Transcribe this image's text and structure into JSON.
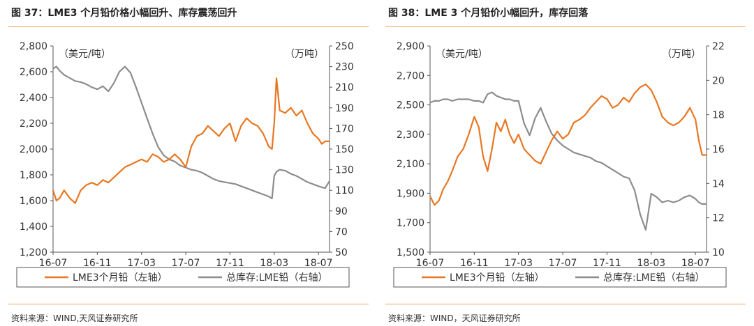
{
  "colors": {
    "lead": "#e87722",
    "inventory": "#8c8c8c",
    "rule": "#e6a15a",
    "axis": "#555555",
    "text": "#333333"
  },
  "chart_data": [
    {
      "type": "line",
      "title": "图 37：LME3 个月铅价格小幅回升、库存震荡回升",
      "source": "资料来源：WIND,天风证券研究所",
      "left_unit": "（美元/吨）",
      "right_unit": "（万吨）",
      "ylim_left": [
        1200,
        2800
      ],
      "yticks_left": [
        1200,
        1400,
        1600,
        1800,
        2000,
        2200,
        2400,
        2600,
        2800
      ],
      "ytick_labels_left": [
        "1,200",
        "1,400",
        "1,600",
        "1,800",
        "2,000",
        "2,200",
        "2,400",
        "2,600",
        "2,800"
      ],
      "ylim_right": [
        50,
        250
      ],
      "yticks_right": [
        50,
        70,
        90,
        110,
        130,
        150,
        170,
        190,
        210,
        230,
        250
      ],
      "ytick_labels_right": [
        "50",
        "70",
        "90",
        "110",
        "130",
        "150",
        "170",
        "190",
        "210",
        "230",
        "250"
      ],
      "xlim": [
        0,
        25
      ],
      "x_ticks": [
        0,
        4,
        8,
        12,
        16,
        20,
        24
      ],
      "x_tick_labels": [
        "16-07",
        "16-11",
        "17-03",
        "17-07",
        "17-11",
        "18-03",
        "18-07"
      ],
      "legend": [
        "LME3个月铅（左轴）",
        "总库存:LME铅（右轴）"
      ],
      "series": [
        {
          "name": "LME3个月铅（左轴）",
          "axis": "left",
          "color": "#e87722",
          "x": [
            0,
            0.3,
            0.6,
            1,
            1.5,
            2,
            2.5,
            3,
            3.5,
            4,
            4.5,
            5,
            5.5,
            6,
            6.5,
            7,
            7.5,
            8,
            8.5,
            9,
            9.5,
            10,
            10.5,
            11,
            11.5,
            12,
            12.5,
            13,
            13.5,
            14,
            14.5,
            15,
            15.5,
            16,
            16.5,
            17,
            17.5,
            18,
            18.5,
            19,
            19.5,
            19.8,
            20,
            20.2,
            20.5,
            21,
            21.5,
            22,
            22.5,
            23,
            23.5,
            24,
            24.3,
            24.6,
            25
          ],
          "values": [
            1680,
            1600,
            1620,
            1680,
            1620,
            1580,
            1680,
            1720,
            1740,
            1720,
            1760,
            1740,
            1780,
            1820,
            1860,
            1880,
            1900,
            1920,
            1900,
            1960,
            1940,
            1900,
            1920,
            1960,
            1920,
            1860,
            2020,
            2100,
            2120,
            2180,
            2140,
            2100,
            2160,
            2200,
            2060,
            2180,
            2240,
            2200,
            2180,
            2120,
            2020,
            2000,
            2200,
            2550,
            2300,
            2280,
            2320,
            2260,
            2300,
            2200,
            2120,
            2080,
            2040,
            2060,
            2060
          ]
        },
        {
          "name": "总库存:LME铅（右轴）",
          "axis": "right",
          "color": "#8c8c8c",
          "x": [
            0,
            0.3,
            0.6,
            1,
            1.5,
            2,
            2.5,
            3,
            3.5,
            4,
            4.5,
            5,
            5.5,
            6,
            6.5,
            7,
            7.5,
            8,
            8.5,
            9,
            9.5,
            10,
            10.5,
            11,
            11.5,
            12,
            12.5,
            13,
            13.5,
            14,
            14.5,
            15,
            15.5,
            16,
            16.5,
            17,
            17.5,
            18,
            18.5,
            19,
            19.5,
            19.8,
            20,
            20.2,
            20.5,
            21,
            21.5,
            22,
            22.5,
            23,
            23.5,
            24,
            24.3,
            24.6,
            25
          ],
          "values": [
            228,
            230,
            226,
            222,
            219,
            216,
            215,
            213,
            210,
            208,
            211,
            206,
            214,
            225,
            230,
            224,
            210,
            195,
            180,
            165,
            152,
            144,
            140,
            138,
            134,
            132,
            130,
            129,
            127,
            124,
            121,
            119,
            118,
            117,
            116,
            114,
            112,
            110,
            108,
            106,
            104,
            102,
            124,
            128,
            130,
            129,
            126,
            124,
            121,
            118,
            116,
            114,
            113,
            112,
            119
          ]
        }
      ]
    },
    {
      "type": "line",
      "title": "图 38：LME 3 个月铅价小幅回升，库存回落",
      "source": "资料来源：WIND，天风证券研究所",
      "left_unit": "（美元/吨）",
      "right_unit": "（万吨）",
      "ylim_left": [
        1500,
        2900
      ],
      "yticks_left": [
        1500,
        1700,
        1900,
        2100,
        2300,
        2500,
        2700,
        2900
      ],
      "ytick_labels_left": [
        "1,500",
        "1,700",
        "1,900",
        "2,100",
        "2,300",
        "2,500",
        "2,700",
        "2,900"
      ],
      "ylim_right": [
        10,
        22
      ],
      "yticks_right": [
        10,
        12,
        14,
        16,
        18,
        20,
        22
      ],
      "ytick_labels_right": [
        "10",
        "12",
        "14",
        "16",
        "18",
        "20",
        "22"
      ],
      "xlim": [
        0,
        25
      ],
      "x_ticks": [
        0,
        4,
        8,
        12,
        16,
        20,
        24
      ],
      "x_tick_labels": [
        "16-07",
        "16-11",
        "17-03",
        "17-07",
        "17-11",
        "18-03",
        "18-07"
      ],
      "legend": [
        "LME3个月铅（左轴）",
        "总库存:LME铅（右轴）"
      ],
      "series": [
        {
          "name": "LME3个月铅（左轴）",
          "axis": "left",
          "color": "#e87722",
          "x": [
            0,
            0.4,
            0.8,
            1.2,
            1.6,
            2,
            2.5,
            3,
            3.5,
            4,
            4.4,
            4.8,
            5.2,
            5.6,
            6,
            6.4,
            6.8,
            7.2,
            7.6,
            8,
            8.5,
            9,
            9.5,
            10,
            10.5,
            11,
            11.5,
            12,
            12.5,
            13,
            13.5,
            14,
            14.5,
            15,
            15.5,
            16,
            16.5,
            17,
            17.5,
            18,
            18.5,
            19,
            19.5,
            20,
            20.5,
            21,
            21.5,
            22,
            22.5,
            23,
            23.5,
            24,
            24.3,
            24.6,
            25
          ],
          "values": [
            1880,
            1820,
            1850,
            1930,
            1980,
            2050,
            2150,
            2200,
            2300,
            2420,
            2350,
            2150,
            2050,
            2200,
            2380,
            2320,
            2400,
            2300,
            2240,
            2300,
            2200,
            2160,
            2120,
            2100,
            2180,
            2260,
            2320,
            2270,
            2300,
            2380,
            2400,
            2430,
            2480,
            2520,
            2560,
            2540,
            2480,
            2500,
            2550,
            2520,
            2580,
            2620,
            2640,
            2600,
            2520,
            2420,
            2380,
            2360,
            2380,
            2420,
            2480,
            2400,
            2260,
            2160,
            2160
          ]
        },
        {
          "name": "总库存:LME铅（右轴）",
          "axis": "right",
          "color": "#8c8c8c",
          "x": [
            0,
            0.4,
            0.8,
            1.2,
            1.6,
            2,
            2.5,
            3,
            3.5,
            4,
            4.4,
            4.8,
            5.2,
            5.6,
            6,
            6.4,
            6.8,
            7.2,
            7.6,
            8,
            8.5,
            9,
            9.5,
            10,
            10.5,
            11,
            11.5,
            12,
            12.5,
            13,
            13.5,
            14,
            14.5,
            15,
            15.5,
            16,
            16.5,
            17,
            17.5,
            18,
            18.5,
            19,
            19.5,
            20,
            20.5,
            21,
            21.5,
            22,
            22.5,
            23,
            23.5,
            24,
            24.3,
            24.6,
            25
          ],
          "values": [
            18.7,
            18.8,
            18.8,
            18.9,
            18.9,
            18.8,
            18.9,
            18.9,
            18.9,
            18.8,
            18.8,
            18.7,
            19.2,
            19.3,
            19.1,
            19.0,
            18.9,
            18.9,
            18.8,
            18.8,
            17.5,
            16.8,
            17.8,
            18.4,
            17.6,
            16.9,
            16.5,
            16.2,
            16.0,
            15.8,
            15.7,
            15.6,
            15.5,
            15.3,
            15.2,
            15.0,
            14.8,
            14.6,
            14.4,
            14.3,
            13.6,
            12.2,
            11.3,
            13.4,
            13.2,
            12.9,
            13.0,
            12.9,
            13.0,
            13.2,
            13.3,
            13.1,
            12.9,
            12.8,
            12.8
          ]
        }
      ]
    }
  ]
}
